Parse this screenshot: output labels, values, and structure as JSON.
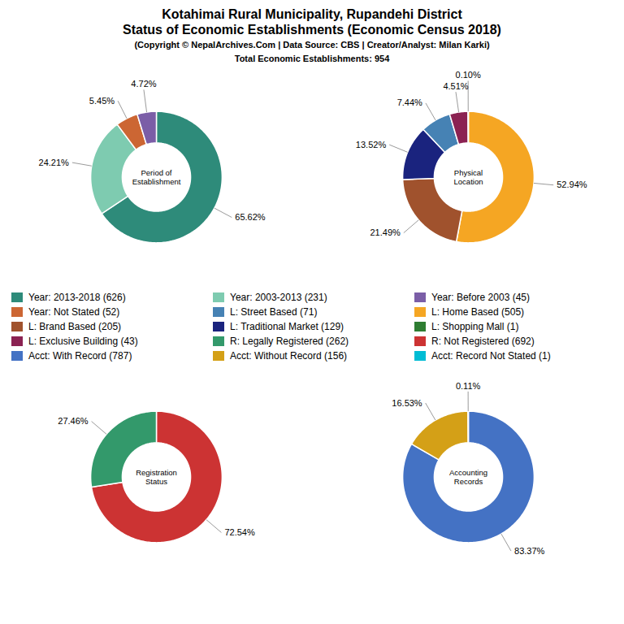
{
  "title": [
    "Kotahimai Rural Municipality, Rupandehi District",
    "Status of Economic Establishments (Economic Census 2018)"
  ],
  "subtitle": [
    "(Copyright © NepalArchives.Com | Data Source: CBS | Creator/Analyst: Milan Karki)",
    "Total Economic Establishments: 954"
  ],
  "series": [
    {
      "name": "Year: 2013-2018 (626)",
      "color": "#2e8b7a"
    },
    {
      "name": "Year: 2003-2013 (231)",
      "color": "#7ecbb0"
    },
    {
      "name": "Year: Before 2003 (45)",
      "color": "#7b5ea7"
    },
    {
      "name": "Year: Not Stated (52)",
      "color": "#cc6633"
    },
    {
      "name": "L: Street Based (71)",
      "color": "#4682b4"
    },
    {
      "name": "L: Home Based (505)",
      "color": "#f5a623"
    },
    {
      "name": "L: Brand Based (205)",
      "color": "#a0522d"
    },
    {
      "name": "L: Traditional Market (129)",
      "color": "#1a237e"
    },
    {
      "name": "L: Shopping Mall (1)",
      "color": "#2e7d32"
    },
    {
      "name": "L: Exclusive Building (43)",
      "color": "#8b2252"
    },
    {
      "name": "R: Legally Registered (262)",
      "color": "#33996b"
    },
    {
      "name": "R: Not Registered (692)",
      "color": "#cc3333"
    },
    {
      "name": "Acct: With Record (787)",
      "color": "#4472c4"
    },
    {
      "name": "Acct: Without Record (156)",
      "color": "#d4a017"
    },
    {
      "name": "Acct: Record Not Stated (1)",
      "color": "#00bcd4"
    }
  ],
  "chart_data": [
    {
      "type": "pie",
      "title": "Period of\nEstablishment",
      "values": [
        65.62,
        24.21,
        5.45,
        4.72
      ],
      "value_labels": [
        "65.62%",
        "24.21%",
        "5.45%",
        "4.72%"
      ],
      "colors": [
        "#2e8b7a",
        "#7ecbb0",
        "#cc6633",
        "#7b5ea7"
      ],
      "data_labels": true
    },
    {
      "type": "pie",
      "title": "Physical\nLocation",
      "values": [
        52.94,
        21.49,
        13.52,
        7.44,
        4.51,
        0.1
      ],
      "value_labels": [
        "52.94%",
        "21.49%",
        "13.52%",
        "7.44%",
        "4.51%",
        "0.10%"
      ],
      "colors": [
        "#f5a623",
        "#a0522d",
        "#1a237e",
        "#4682b4",
        "#8b2252",
        "#00bcd4"
      ],
      "data_labels": true
    },
    {
      "type": "pie",
      "title": "Registration\nStatus",
      "values": [
        72.54,
        27.46
      ],
      "value_labels": [
        "72.54%",
        "27.46%"
      ],
      "colors": [
        "#cc3333",
        "#33996b"
      ],
      "data_labels": true
    },
    {
      "type": "pie",
      "title": "Accounting\nRecords",
      "values": [
        83.37,
        16.53,
        0.11
      ],
      "value_labels": [
        "83.37%",
        "16.53%",
        "0.11%"
      ],
      "colors": [
        "#4472c4",
        "#d4a017",
        "#00bcd4"
      ],
      "data_labels": true
    }
  ]
}
